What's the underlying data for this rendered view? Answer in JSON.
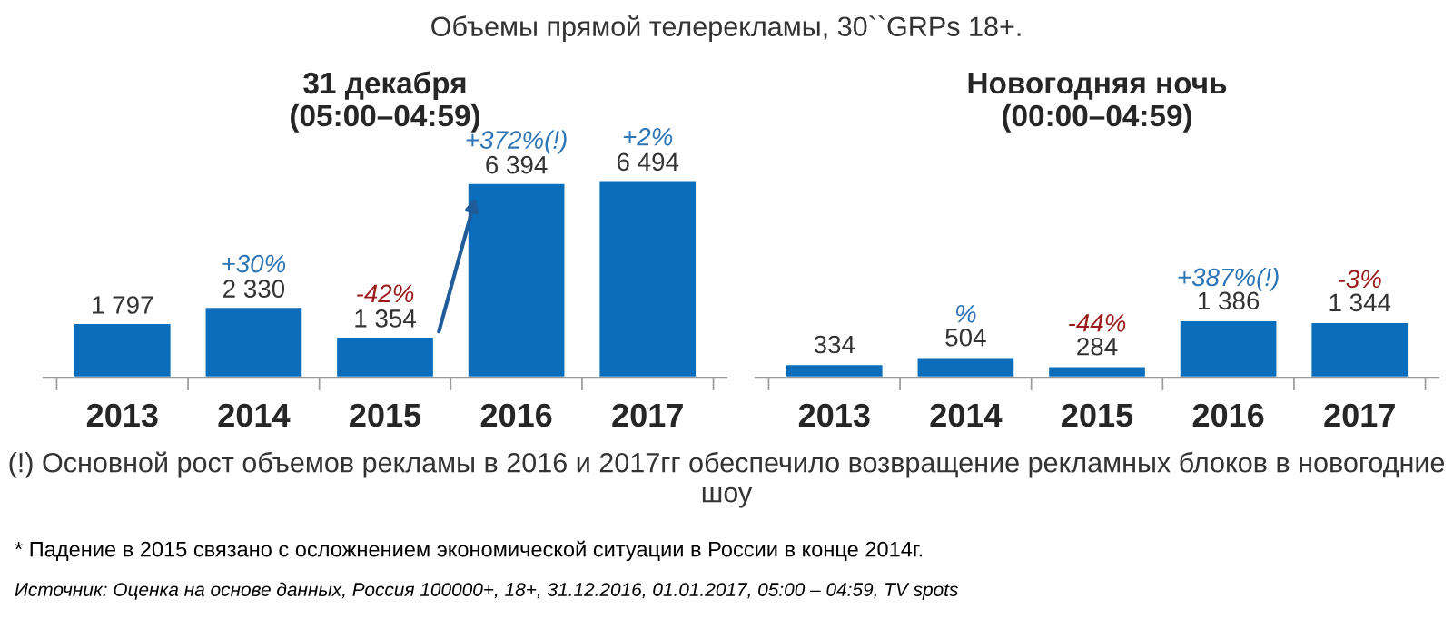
{
  "chart_data": [
    {
      "type": "bar",
      "title": "31 декабря\n(05:00–04:59)",
      "categories": [
        "2013",
        "2014",
        "2015",
        "2016",
        "2017"
      ],
      "series": [
        {
          "color": "#0a6ebd",
          "values": [
            1797,
            2330,
            1354,
            6394,
            6494
          ],
          "value_labels": [
            "1 797",
            "2 330",
            "1 354",
            "6 394",
            "6 494"
          ]
        }
      ],
      "annotations": [
        "Объемы прямой телерекламы, 30``GRPs 18+.",
        {
          "text": "+30%",
          "x": "2014",
          "y": 2330
        },
        {
          "text": "-42%",
          "x": "2015",
          "y": 1354
        },
        {
          "text": "+372%(!)",
          "x": "2016",
          "y": 6394
        },
        {
          "text": "+2%",
          "x": "2017",
          "y": 6494
        }
      ],
      "grid": false,
      "legend": false
    },
    {
      "type": "bar",
      "title": "Новогодняя ночь\n(00:00–04:59)",
      "categories": [
        "2013",
        "2014",
        "2015",
        "2016",
        "2017"
      ],
      "series": [
        {
          "color": "#0a6ebd",
          "values": [
            334,
            504,
            284,
            1386,
            1344
          ],
          "value_labels": [
            "334",
            "504",
            "284",
            "1 386",
            "1 344"
          ]
        }
      ],
      "annotations": [
        "(!) Основной рост объемов рекламы в 2016 и 2017гг обеспечило возвращение рекламных блоков в новогодние шоу",
        "* Падение в 2015 связано с осложнением экономической ситуации в России в конце 2014г.",
        "Источник: Оценка на основе данных, Россия 100000+, 18+, 31.12.2016, 01.01.2017, 05:00 – 04:59, TV spots",
        {
          "text": "%",
          "x": "2014",
          "y": 504
        },
        {
          "text": "-44%",
          "x": "2015",
          "y": 284
        },
        {
          "text": "+387%(!)",
          "x": "2016",
          "y": 1386
        },
        {
          "text": "-3%",
          "x": "2017",
          "y": 1344
        }
      ],
      "grid": false,
      "legend": false
    }
  ]
}
